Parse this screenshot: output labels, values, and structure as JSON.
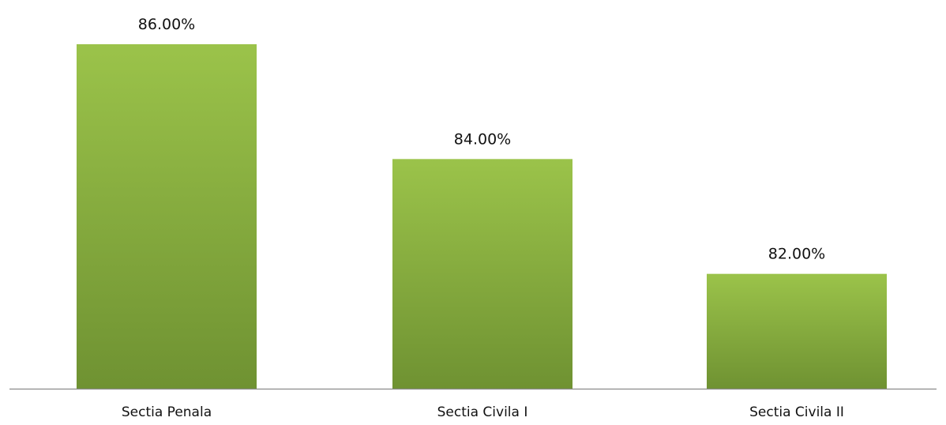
{
  "chart_data": {
    "type": "bar",
    "categories": [
      "Sectia Penala",
      "Sectia Civila I",
      "Sectia Civila II"
    ],
    "values": [
      86.0,
      84.0,
      82.0
    ],
    "value_labels": [
      "86.00%",
      "84.00%",
      "82.00%"
    ],
    "title": "",
    "xlabel": "",
    "ylabel": "",
    "ylim": [
      80,
      86
    ],
    "grid": false,
    "legend": "none",
    "colors": {
      "bar_top": "#9bc34a",
      "bar_bottom": "#6f9232",
      "axis": "#8a8a8a"
    }
  }
}
